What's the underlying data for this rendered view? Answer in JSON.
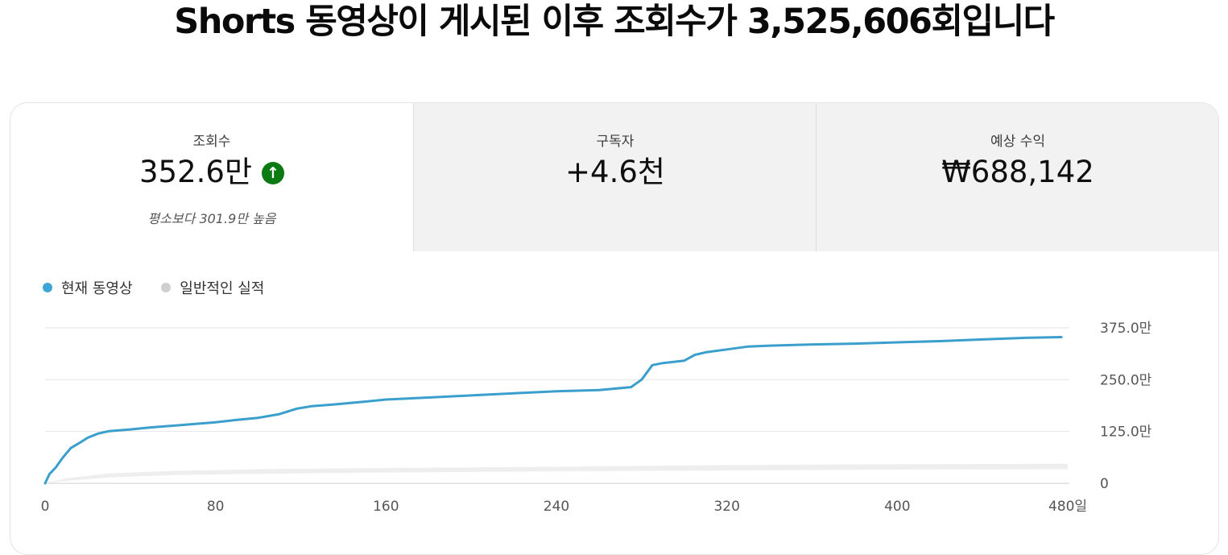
{
  "headline": "Shorts 동영상이 게시된 이후 조회수가 3,525,606회입니다",
  "metrics": [
    {
      "label": "조회수",
      "value": "352.6만",
      "note": "평소보다 301.9만 높음",
      "trend_icon": "arrow-up-icon"
    },
    {
      "label": "구독자",
      "value": "+4.6천"
    },
    {
      "label": "예상 수익",
      "value": "₩688,142"
    }
  ],
  "legend": [
    {
      "label": "현재 동영상",
      "color": "#3ea6d6"
    },
    {
      "label": "일반적인 실적",
      "color": "#cfcfcf"
    }
  ],
  "colors": {
    "current_line": "#3a9fcc",
    "typical_band": "#eeeeee",
    "up_badge": "#0b7a12"
  },
  "chart_data": {
    "type": "line",
    "x_ticks": [
      "0",
      "80",
      "160",
      "240",
      "320",
      "400",
      "480일"
    ],
    "x_tick_values": [
      0,
      80,
      160,
      240,
      320,
      400,
      480
    ],
    "y_ticks": [
      "0",
      "125.0만",
      "250.0만",
      "375.0만"
    ],
    "y_tick_values": [
      0,
      125,
      250,
      375
    ],
    "xlim": [
      0,
      480
    ],
    "ylim": [
      0,
      375
    ],
    "grid": true,
    "legend_position": "top-left",
    "series": [
      {
        "name": "현재 동영상",
        "x": [
          0,
          2,
          5,
          8,
          12,
          16,
          20,
          25,
          30,
          40,
          50,
          60,
          70,
          80,
          90,
          100,
          110,
          118,
          125,
          135,
          150,
          160,
          180,
          200,
          220,
          240,
          260,
          275,
          280,
          285,
          290,
          300,
          305,
          310,
          320,
          330,
          340,
          360,
          380,
          400,
          420,
          440,
          460,
          477
        ],
        "y": [
          0,
          22,
          38,
          60,
          85,
          97,
          110,
          120,
          126,
          130,
          135,
          139,
          143,
          147,
          153,
          158,
          167,
          180,
          186,
          190,
          197,
          202,
          207,
          212,
          217,
          222,
          225,
          232,
          250,
          285,
          290,
          296,
          310,
          316,
          323,
          330,
          332,
          335,
          337,
          340,
          343,
          347,
          351,
          352.6
        ]
      },
      {
        "name": "일반적인 실적",
        "x": [
          0,
          10,
          30,
          60,
          100,
          160,
          240,
          320,
          400,
          480
        ],
        "low": [
          0,
          6,
          14,
          20,
          23,
          26,
          29,
          31,
          33,
          34
        ],
        "high": [
          0,
          12,
          24,
          30,
          34,
          37,
          40,
          44,
          46,
          47
        ]
      }
    ]
  }
}
